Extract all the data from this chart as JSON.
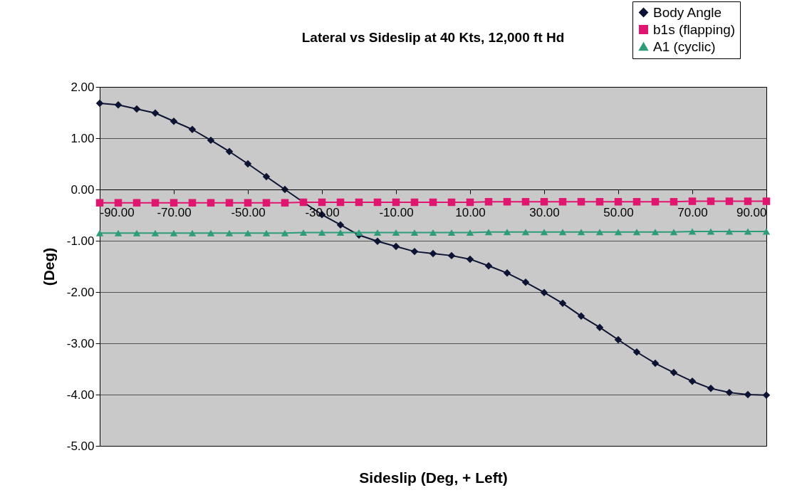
{
  "chart_data": {
    "type": "line",
    "title": "Lateral vs Sideslip at 40 Kts, 12,000 ft Hd",
    "xlabel": "Sideslip (Deg, + Left)",
    "ylabel": "(Deg)",
    "x": [
      -90,
      -85,
      -80,
      -75,
      -70,
      -65,
      -60,
      -55,
      -50,
      -45,
      -40,
      -35,
      -30,
      -25,
      -20,
      -15,
      -10,
      -5,
      0,
      5,
      10,
      15,
      20,
      25,
      30,
      35,
      40,
      45,
      50,
      55,
      60,
      65,
      70,
      75,
      80,
      85,
      90
    ],
    "series": [
      {
        "name": "Body Angle",
        "color": "#0d1433",
        "marker": "diamond",
        "values": [
          1.68,
          1.65,
          1.57,
          1.49,
          1.33,
          1.17,
          0.96,
          0.74,
          0.5,
          0.25,
          0.0,
          -0.25,
          -0.49,
          -0.69,
          -0.89,
          -1.01,
          -1.11,
          -1.21,
          -1.25,
          -1.29,
          -1.36,
          -1.49,
          -1.63,
          -1.81,
          -2.01,
          -2.22,
          -2.47,
          -2.69,
          -2.93,
          -3.17,
          -3.39,
          -3.57,
          -3.74,
          -3.88,
          -3.96,
          -4.0,
          -4.01
        ]
      },
      {
        "name": "b1s (flapping)",
        "color": "#e0156f",
        "marker": "square",
        "values": [
          -0.26,
          -0.26,
          -0.26,
          -0.26,
          -0.26,
          -0.26,
          -0.26,
          -0.26,
          -0.26,
          -0.26,
          -0.26,
          -0.25,
          -0.25,
          -0.25,
          -0.25,
          -0.25,
          -0.25,
          -0.25,
          -0.25,
          -0.25,
          -0.25,
          -0.24,
          -0.24,
          -0.24,
          -0.24,
          -0.24,
          -0.24,
          -0.24,
          -0.24,
          -0.24,
          -0.24,
          -0.24,
          -0.23,
          -0.23,
          -0.23,
          -0.23,
          -0.23
        ]
      },
      {
        "name": "A1 (cyclic)",
        "color": "#2e9c7a",
        "marker": "triangle",
        "values": [
          -0.85,
          -0.85,
          -0.85,
          -0.85,
          -0.85,
          -0.85,
          -0.85,
          -0.85,
          -0.85,
          -0.85,
          -0.85,
          -0.84,
          -0.84,
          -0.84,
          -0.84,
          -0.84,
          -0.84,
          -0.84,
          -0.84,
          -0.84,
          -0.84,
          -0.83,
          -0.83,
          -0.83,
          -0.83,
          -0.83,
          -0.83,
          -0.83,
          -0.83,
          -0.83,
          -0.83,
          -0.83,
          -0.82,
          -0.82,
          -0.82,
          -0.82,
          -0.82
        ]
      }
    ],
    "xlim": [
      -90,
      90
    ],
    "xticks": [
      {
        "value": -90,
        "label": "-90.00"
      },
      {
        "value": -70,
        "label": "-70.00"
      },
      {
        "value": -50,
        "label": "-50.00"
      },
      {
        "value": -30,
        "label": "-30.00"
      },
      {
        "value": -10,
        "label": "-10.00"
      },
      {
        "value": 10,
        "label": "10.00"
      },
      {
        "value": 30,
        "label": "30.00"
      },
      {
        "value": 50,
        "label": "50.00"
      },
      {
        "value": 70,
        "label": "70.00"
      },
      {
        "value": 90,
        "label": "90.00"
      }
    ],
    "ylim": [
      -5,
      2
    ],
    "yticks": [
      {
        "value": -5,
        "label": "-5.00"
      },
      {
        "value": -4,
        "label": "-4.00"
      },
      {
        "value": -3,
        "label": "-3.00"
      },
      {
        "value": -2,
        "label": "-2.00"
      },
      {
        "value": -1,
        "label": "-1.00"
      },
      {
        "value": 0,
        "label": "0.00"
      },
      {
        "value": 1,
        "label": "1.00"
      },
      {
        "value": 2,
        "label": "2.00"
      }
    ],
    "grid": "y",
    "legend": "top right",
    "line_style": "solid"
  }
}
